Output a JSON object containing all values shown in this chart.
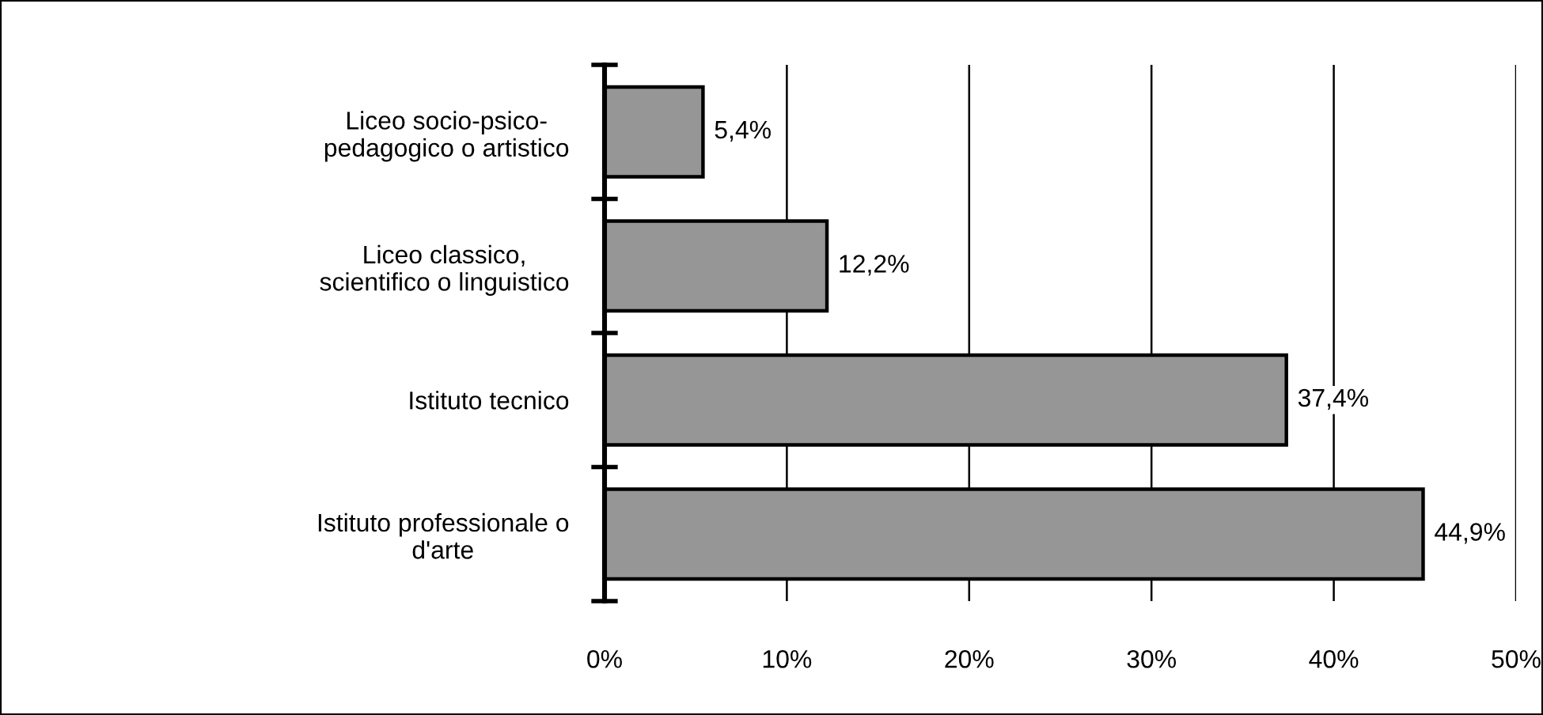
{
  "chart_data": {
    "type": "bar",
    "orientation": "horizontal",
    "categories": [
      "Liceo socio-psico-\npedagogico o artistico",
      "Liceo classico,\nscientifico o linguistico",
      "Istituto tecnico",
      "Istituto professionale o\nd'arte"
    ],
    "values": [
      5.4,
      12.2,
      37.4,
      44.9
    ],
    "color": "#969696",
    "value_labels": [
      "5,4%",
      "12,2%",
      "37,4%",
      "44,9%"
    ],
    "xlim": [
      0,
      50
    ],
    "xticks": [
      {
        "value": 0,
        "label": "0%"
      },
      {
        "value": 10,
        "label": "10%"
      },
      {
        "value": 20,
        "label": "20%"
      },
      {
        "value": 30,
        "label": "30%"
      },
      {
        "value": 40,
        "label": "40%"
      },
      {
        "value": 50,
        "label": "50%"
      }
    ],
    "grid": "x"
  }
}
